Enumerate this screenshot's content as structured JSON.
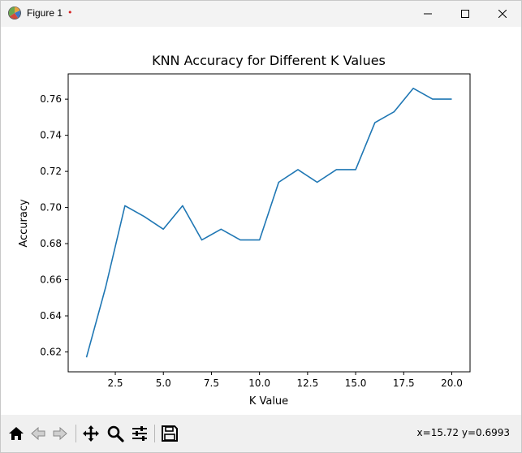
{
  "window": {
    "title": "Figure 1",
    "modified_marker": "•"
  },
  "toolbar": {
    "coordinates": "x=15.72 y=0.6993",
    "tools": [
      "home-icon",
      "back-arrow-icon",
      "forward-arrow-icon",
      "pan-icon",
      "zoom-icon",
      "configure-subplots-icon",
      "save-icon"
    ]
  },
  "chart_data": {
    "type": "line",
    "title": "KNN Accuracy for Different K Values",
    "xlabel": "K Value",
    "ylabel": "Accuracy",
    "x": [
      1,
      2,
      3,
      4,
      5,
      6,
      7,
      8,
      9,
      10,
      11,
      12,
      13,
      14,
      15,
      16,
      17,
      18,
      19,
      20
    ],
    "y": [
      0.617,
      0.656,
      0.701,
      0.695,
      0.688,
      0.701,
      0.682,
      0.688,
      0.682,
      0.682,
      0.714,
      0.721,
      0.714,
      0.721,
      0.721,
      0.747,
      0.753,
      0.766,
      0.76,
      0.76
    ],
    "xlim": [
      0.05,
      20.95
    ],
    "ylim": [
      0.609,
      0.774
    ],
    "xticks": [
      2.5,
      5.0,
      7.5,
      10.0,
      12.5,
      15.0,
      17.5,
      20.0
    ],
    "xtick_labels": [
      "2.5",
      "5.0",
      "7.5",
      "10.0",
      "12.5",
      "15.0",
      "17.5",
      "20.0"
    ],
    "yticks": [
      0.62,
      0.64,
      0.66,
      0.68,
      0.7,
      0.72,
      0.74,
      0.76
    ],
    "ytick_labels": [
      "0.62",
      "0.64",
      "0.66",
      "0.68",
      "0.70",
      "0.72",
      "0.74",
      "0.76"
    ],
    "line_color": "#1f77b4",
    "grid": false,
    "legend": "none"
  }
}
